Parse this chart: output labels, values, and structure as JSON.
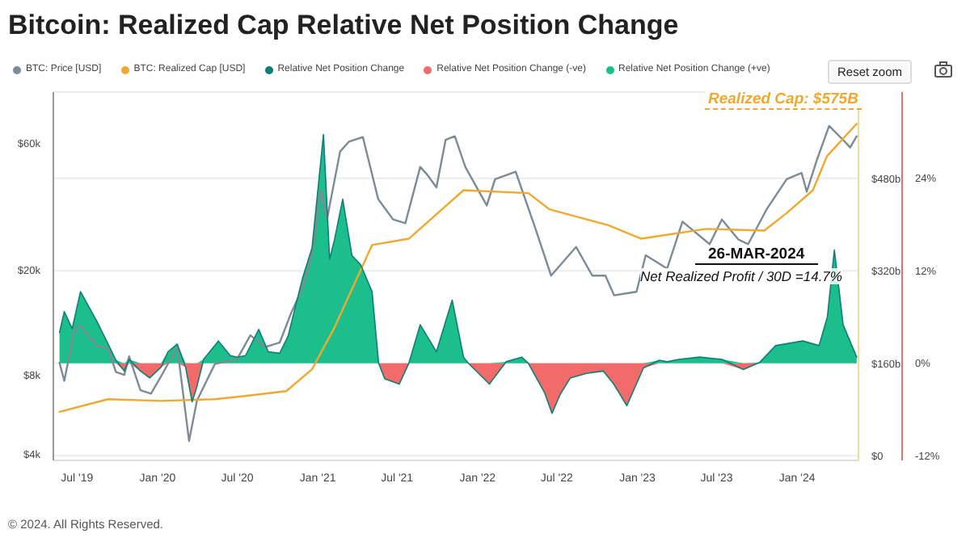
{
  "chart_data": {
    "type": "line",
    "title": "Bitcoin: Realized Cap Relative Net Position Change",
    "annotations": [
      "Realized Cap: $575B",
      "26-MAR-2024",
      "Net Realized Profit / 30D =14.7%",
      "Reset zoom",
      "© 2024. All Rights Reserved."
    ],
    "legend": "top",
    "grid": "y",
    "marker": "none",
    "line_style": "solid",
    "log": "y",
    "xlim": [
      "2019-05-08",
      "2024-05-20"
    ],
    "xticks": [
      {
        "value": "2019-07-01",
        "label": "Jul '19"
      },
      {
        "value": "2020-01-01",
        "label": "Jan '20"
      },
      {
        "value": "2020-07-01",
        "label": "Jul '20"
      },
      {
        "value": "2021-01-01",
        "label": "Jan '21"
      },
      {
        "value": "2021-07-01",
        "label": "Jul '21"
      },
      {
        "value": "2022-01-01",
        "label": "Jan '22"
      },
      {
        "value": "2022-07-01",
        "label": "Jul '22"
      },
      {
        "value": "2023-01-01",
        "label": "Jan '23"
      },
      {
        "value": "2023-07-01",
        "label": "Jul '23"
      },
      {
        "value": "2024-01-01",
        "label": "Jan '24"
      }
    ],
    "ylim": [
      3800,
      94000
    ],
    "yticks": [
      {
        "value": 4000,
        "label": "$4k"
      },
      {
        "value": 8000,
        "label": "$8k"
      },
      {
        "value": 20000,
        "label": "$20k"
      },
      {
        "value": 60000,
        "label": "$60k"
      }
    ],
    "y2lim": [
      -8,
      630
    ],
    "y2ticks": [
      {
        "value": 0,
        "label": "$0"
      },
      {
        "value": 160,
        "label": "$160b"
      },
      {
        "value": 320,
        "label": "$320b"
      },
      {
        "value": 480,
        "label": "$480b"
      }
    ],
    "y3lim": [
      -12.6,
      35.2
    ],
    "y3ticks": [
      {
        "value": -12,
        "label": "-12%"
      },
      {
        "value": 0,
        "label": "0%"
      },
      {
        "value": 12,
        "label": "12%"
      },
      {
        "value": 24,
        "label": "24%"
      }
    ],
    "series": [
      {
        "name": "BTC: Price [USD]",
        "color": "#7d8b95",
        "x": [
          "2019-05-22",
          "2019-06-02",
          "2019-06-26",
          "2019-07-09",
          "2019-08-15",
          "2019-09-10",
          "2019-09-28",
          "2019-10-17",
          "2019-10-28",
          "2019-11-23",
          "2019-12-17",
          "2020-01-09",
          "2020-02-15",
          "2020-03-13",
          "2020-03-31",
          "2020-05-11",
          "2020-07-01",
          "2020-07-31",
          "2020-09-03",
          "2020-10-06",
          "2020-11-01",
          "2020-11-27",
          "2020-12-19",
          "2021-01-08",
          "2021-01-22",
          "2021-02-21",
          "2021-03-13",
          "2021-04-14",
          "2021-05-19",
          "2021-06-22",
          "2021-07-20",
          "2021-08-23",
          "2021-09-07",
          "2021-09-29",
          "2021-10-20",
          "2021-11-10",
          "2021-12-04",
          "2022-01-22",
          "2022-02-10",
          "2022-03-29",
          "2022-05-12",
          "2022-06-18",
          "2022-08-14",
          "2022-09-20",
          "2022-10-20",
          "2022-11-09",
          "2022-12-30",
          "2023-01-20",
          "2023-03-10",
          "2023-04-14",
          "2023-06-15",
          "2023-07-13",
          "2023-08-20",
          "2023-09-11",
          "2023-10-24",
          "2023-12-08",
          "2024-01-11",
          "2024-01-23",
          "2024-02-15",
          "2024-03-14",
          "2024-04-17",
          "2024-05-01",
          "2024-05-16"
        ],
        "values": [
          8900,
          7600,
          12000,
          12300,
          10300,
          10100,
          8200,
          8000,
          9400,
          7000,
          6800,
          7900,
          10200,
          4500,
          6400,
          8800,
          9200,
          11300,
          10200,
          10600,
          13700,
          17000,
          23000,
          40000,
          31000,
          56000,
          61000,
          63500,
          37000,
          31000,
          30000,
          49000,
          46000,
          41000,
          62000,
          64000,
          49000,
          35000,
          44000,
          47000,
          29000,
          19000,
          24400,
          19000,
          19000,
          16000,
          16500,
          22700,
          20200,
          30400,
          25000,
          31000,
          26000,
          25000,
          34000,
          44000,
          46500,
          39500,
          52000,
          70000,
          61500,
          58000,
          64000
        ]
      },
      {
        "name": "BTC: Realized Cap [USD]",
        "type": "line",
        "axis": "y2",
        "color": "#f0a830",
        "x": [
          "2019-05-22",
          "2019-09-10",
          "2020-01-09",
          "2020-05-11",
          "2020-07-24",
          "2020-10-21",
          "2020-12-19",
          "2021-02-08",
          "2021-05-05",
          "2021-07-28",
          "2021-11-30",
          "2022-04-27",
          "2022-06-14",
          "2022-10-28",
          "2023-01-10",
          "2023-06-07",
          "2023-10-18",
          "2023-12-09",
          "2024-02-06",
          "2024-03-09",
          "2024-05-16"
        ],
        "values": [
          76,
          98,
          95,
          98,
          104,
          112,
          150,
          222,
          365,
          376,
          460,
          455,
          427,
          399,
          376,
          393,
          390,
          421,
          460,
          519,
          575
        ]
      },
      {
        "name": "Relative Net Position Change",
        "type": "line",
        "axis": "y3",
        "color": "#0d7f78",
        "x": [
          "2019-05-22",
          "2019-06-02",
          "2019-06-20",
          "2019-07-09",
          "2019-08-15",
          "2019-09-10",
          "2019-09-28",
          "2019-10-17",
          "2019-10-28",
          "2019-11-23",
          "2019-12-14",
          "2020-01-09",
          "2020-01-25",
          "2020-02-15",
          "2020-03-05",
          "2020-03-20",
          "2020-03-31",
          "2020-04-15",
          "2020-05-19",
          "2020-06-15",
          "2020-07-01",
          "2020-07-20",
          "2020-08-19",
          "2020-09-10",
          "2020-10-06",
          "2020-10-25",
          "2020-11-27",
          "2020-12-19",
          "2021-01-14",
          "2021-01-28",
          "2021-02-08",
          "2021-02-27",
          "2021-03-20",
          "2021-04-09",
          "2021-05-05",
          "2021-05-20",
          "2021-06-03",
          "2021-07-06",
          "2021-07-28",
          "2021-08-23",
          "2021-09-29",
          "2021-11-04",
          "2021-11-30",
          "2021-12-11",
          "2022-01-28",
          "2022-03-07",
          "2022-04-12",
          "2022-04-27",
          "2022-06-03",
          "2022-06-20",
          "2022-07-09",
          "2022-08-01",
          "2022-09-07",
          "2022-10-15",
          "2022-11-08",
          "2022-12-08",
          "2023-01-15",
          "2023-02-20",
          "2023-03-10",
          "2023-04-05",
          "2023-05-23",
          "2023-07-14",
          "2023-08-31",
          "2023-10-07",
          "2023-11-13",
          "2024-01-14",
          "2024-02-20",
          "2024-03-10",
          "2024-03-26",
          "2024-04-15",
          "2024-05-16"
        ],
        "values": [
          4.0,
          6.7,
          4.5,
          9.3,
          5.5,
          2.5,
          0.4,
          -1.0,
          0.5,
          -1.0,
          -1.9,
          -0.5,
          1.5,
          2.5,
          -0.5,
          -5.0,
          -3.0,
          0.5,
          2.9,
          1.0,
          0.8,
          1.0,
          4.4,
          1.5,
          1.3,
          3.5,
          11.0,
          15.0,
          29.7,
          13.5,
          16.0,
          21.3,
          14.0,
          12.8,
          9.3,
          0,
          -2.0,
          -2.7,
          0,
          5.0,
          1.5,
          8.2,
          0.8,
          0,
          -2.7,
          0.2,
          0.8,
          0,
          -3.8,
          -6.5,
          -4.0,
          -1.9,
          -1.3,
          -1.0,
          -2.7,
          -5.5,
          -0.6,
          0.4,
          0.2,
          0.5,
          0.8,
          0.5,
          -0.8,
          0.1,
          2.3,
          2.9,
          2.3,
          6.0,
          14.7,
          5.0,
          0.8
        ]
      },
      {
        "name": "Relative Net Position Change (-ve)",
        "type": "area",
        "axis": "y3",
        "color": "#f26b6b",
        "x": [
          "2019-05-22",
          "2019-06-02",
          "2019-06-20",
          "2019-07-09",
          "2019-08-15",
          "2019-09-10",
          "2019-09-28",
          "2019-10-17",
          "2019-10-28",
          "2019-11-23",
          "2019-12-14",
          "2020-01-09",
          "2020-01-25",
          "2020-02-15",
          "2020-03-05",
          "2020-03-20",
          "2020-03-31",
          "2020-04-15",
          "2020-05-19",
          "2020-06-15",
          "2020-07-01",
          "2020-07-20",
          "2020-08-19",
          "2020-09-10",
          "2020-10-06",
          "2020-10-25",
          "2020-11-27",
          "2020-12-19",
          "2021-01-14",
          "2021-01-28",
          "2021-02-08",
          "2021-02-27",
          "2021-03-20",
          "2021-04-09",
          "2021-05-05",
          "2021-05-20",
          "2021-06-03",
          "2021-07-06",
          "2021-07-28",
          "2021-08-23",
          "2021-09-29",
          "2021-11-04",
          "2021-11-30",
          "2021-12-11",
          "2022-01-28",
          "2022-03-07",
          "2022-04-12",
          "2022-04-27",
          "2022-06-03",
          "2022-06-20",
          "2022-07-09",
          "2022-08-01",
          "2022-09-07",
          "2022-10-15",
          "2022-11-08",
          "2022-12-08",
          "2023-01-15",
          "2023-02-20",
          "2023-03-10",
          "2023-04-05",
          "2023-05-23",
          "2023-07-14",
          "2023-08-31",
          "2023-10-07",
          "2023-11-13",
          "2024-01-14",
          "2024-02-20",
          "2024-03-10",
          "2024-03-26",
          "2024-04-15",
          "2024-05-16"
        ],
        "values": [
          0,
          0,
          0,
          0,
          0,
          0,
          0,
          -1.0,
          0,
          -1.0,
          -1.9,
          -0.5,
          0,
          0,
          -0.5,
          -5.0,
          -3.0,
          0,
          0,
          0,
          0,
          0,
          0,
          0,
          0,
          0,
          0,
          0,
          0,
          0,
          0,
          0,
          0,
          0,
          0,
          0,
          -2.0,
          -2.7,
          0,
          0,
          0,
          0,
          0,
          0,
          -2.7,
          0,
          0,
          0,
          -3.8,
          -6.5,
          -4.0,
          -1.9,
          -1.3,
          -1.0,
          -2.7,
          -5.5,
          -0.6,
          0,
          0,
          0,
          0,
          0,
          -0.8,
          0,
          0,
          0,
          0,
          0,
          0,
          0,
          0
        ]
      },
      {
        "name": "Relative Net Position Change (+ve)",
        "type": "area",
        "axis": "y3",
        "color": "#1cbf8c",
        "x": [
          "2019-05-22",
          "2019-06-02",
          "2019-06-20",
          "2019-07-09",
          "2019-08-15",
          "2019-09-10",
          "2019-09-28",
          "2019-10-17",
          "2019-10-28",
          "2019-11-23",
          "2019-12-14",
          "2020-01-09",
          "2020-01-25",
          "2020-02-15",
          "2020-03-05",
          "2020-03-20",
          "2020-03-31",
          "2020-04-15",
          "2020-05-19",
          "2020-06-15",
          "2020-07-01",
          "2020-07-20",
          "2020-08-19",
          "2020-09-10",
          "2020-10-06",
          "2020-10-25",
          "2020-11-27",
          "2020-12-19",
          "2021-01-14",
          "2021-01-28",
          "2021-02-08",
          "2021-02-27",
          "2021-03-20",
          "2021-04-09",
          "2021-05-05",
          "2021-05-20",
          "2021-06-03",
          "2021-07-06",
          "2021-07-28",
          "2021-08-23",
          "2021-09-29",
          "2021-11-04",
          "2021-11-30",
          "2021-12-11",
          "2022-01-28",
          "2022-03-07",
          "2022-04-12",
          "2022-04-27",
          "2022-06-03",
          "2022-06-20",
          "2022-07-09",
          "2022-08-01",
          "2022-09-07",
          "2022-10-15",
          "2022-11-08",
          "2022-12-08",
          "2023-01-15",
          "2023-02-20",
          "2023-03-10",
          "2023-04-05",
          "2023-05-23",
          "2023-07-14",
          "2023-08-31",
          "2023-10-07",
          "2023-11-13",
          "2024-01-14",
          "2024-02-20",
          "2024-03-10",
          "2024-03-26",
          "2024-04-15",
          "2024-05-16"
        ],
        "values": [
          4.0,
          6.7,
          4.5,
          9.3,
          5.5,
          2.5,
          0.4,
          0,
          0.5,
          0,
          0,
          0,
          1.5,
          2.5,
          0,
          0,
          0,
          0.5,
          2.9,
          1.0,
          0.8,
          1.0,
          4.4,
          1.5,
          1.3,
          3.5,
          11.0,
          15.0,
          29.7,
          13.5,
          16.0,
          21.3,
          14.0,
          12.8,
          9.3,
          0,
          0,
          0,
          0,
          5.0,
          1.5,
          8.2,
          0.8,
          0,
          0,
          0.2,
          0.8,
          0,
          0,
          0,
          0,
          0,
          0,
          0,
          0,
          0,
          0,
          0.4,
          0.2,
          0.5,
          0.8,
          0.5,
          0,
          0.1,
          2.3,
          2.9,
          2.3,
          6.0,
          14.7,
          5.0,
          0.8
        ]
      }
    ]
  }
}
